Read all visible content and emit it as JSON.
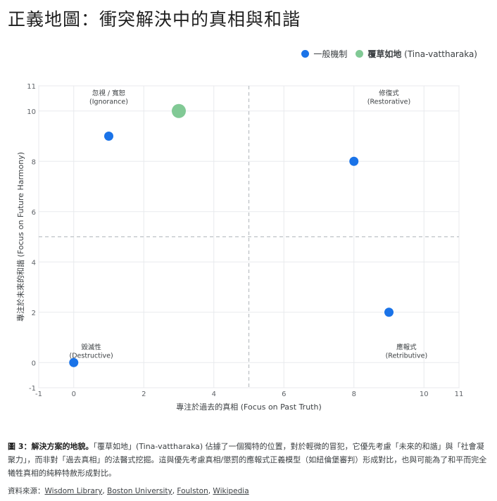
{
  "title": "正義地圖：衝突解決中的真相與和諧",
  "legend": [
    {
      "label": "一般機制",
      "color": "#1a73e8",
      "bold": false
    },
    {
      "label": "覆草如地",
      "label_suffix": " (Tina-vattharaka)",
      "color": "#81c995",
      "bold": true
    }
  ],
  "chart_data": {
    "type": "scatter",
    "xlabel": "專注於過去的真相 (Focus on Past Truth)",
    "ylabel": "專注於未來的和諧 (Focus on Future Harmony)",
    "xlim": [
      -1,
      11
    ],
    "ylim": [
      -1,
      11
    ],
    "x_ticks": [
      -1,
      0,
      2,
      4,
      6,
      8,
      10,
      11
    ],
    "y_ticks": [
      -1,
      0,
      2,
      4,
      6,
      8,
      10,
      11
    ],
    "grid": true,
    "reference_lines": {
      "x": 5,
      "y": 5
    },
    "series": [
      {
        "name": "一般機制",
        "color": "#1a73e8",
        "points": [
          {
            "x": 0,
            "y": 0
          },
          {
            "x": 1,
            "y": 9
          },
          {
            "x": 8,
            "y": 8
          },
          {
            "x": 9,
            "y": 2
          }
        ]
      },
      {
        "name": "覆草如地 (Tina-vattharaka)",
        "color": "#81c995",
        "points": [
          {
            "x": 3,
            "y": 10
          }
        ]
      }
    ],
    "quadrant_labels": [
      {
        "line1": "忽視 / 寬恕",
        "line2": "(Ignorance)",
        "x": 1,
        "y": 10.6
      },
      {
        "line1": "修復式",
        "line2": "(Restorative)",
        "x": 9,
        "y": 10.6
      },
      {
        "line1": "毀滅性",
        "line2": "(Destructive)",
        "x": 0.5,
        "y": 0.5
      },
      {
        "line1": "應報式",
        "line2": "(Retributive)",
        "x": 9.5,
        "y": 0.5
      }
    ]
  },
  "caption": {
    "lead": "圖 3：解決方案的地貌。",
    "text": "「覆草如地」(Tina-vattharaka) 佔據了一個獨特的位置，對於輕微的冒犯，它優先考慮「未來的和諧」與「社會凝聚力」，而非對「過去真相」的法醫式挖掘。這與優先考慮真相/懲罰的應報式正義模型（如紐倫堡審判）形成對比，也與可能為了和平而完全犧牲真相的純粹特赦形成對比。"
  },
  "sources": {
    "label": "資料來源：",
    "links": [
      "Wisdom Library",
      "Boston University",
      "Foulston",
      "Wikipedia"
    ]
  }
}
